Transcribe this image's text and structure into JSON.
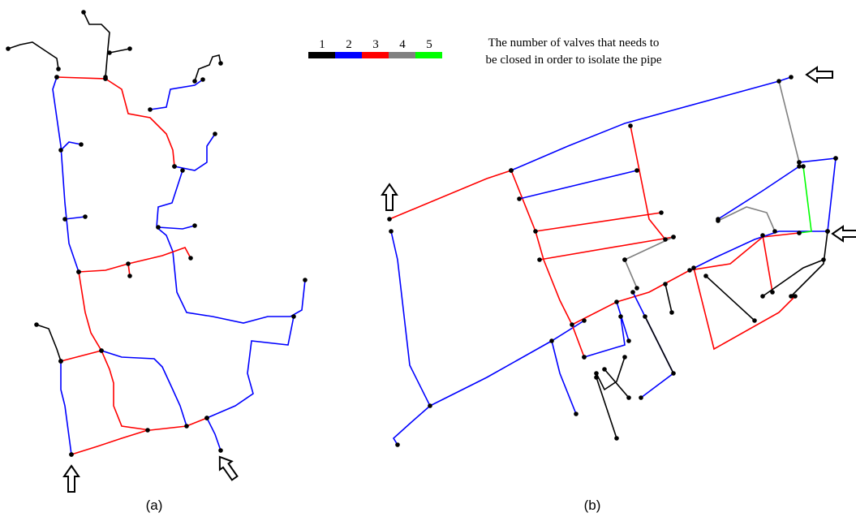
{
  "legend": {
    "items": [
      {
        "label": "1",
        "color": "#000000"
      },
      {
        "label": "2",
        "color": "#0000ff"
      },
      {
        "label": "3",
        "color": "#ff0000"
      },
      {
        "label": "4",
        "color": "#808080"
      },
      {
        "label": "5",
        "color": "#00ff00"
      }
    ],
    "text": [
      "The number of valves that needs to",
      "be closed in order to isolate the pipe"
    ]
  },
  "captions": [
    "(a)",
    "(b)"
  ]
}
